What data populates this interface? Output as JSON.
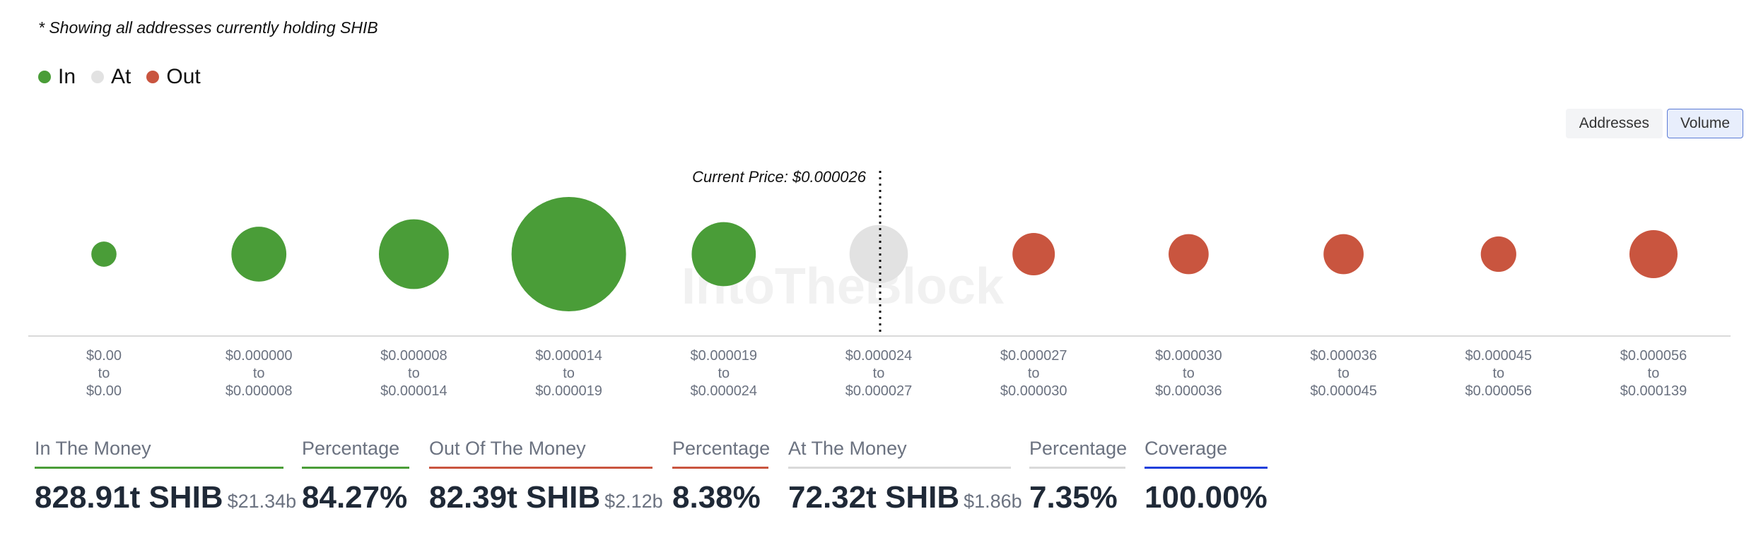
{
  "note": "* Showing all addresses currently holding SHIB",
  "legend": [
    {
      "label": "In",
      "color": "#4a9d38"
    },
    {
      "label": "At",
      "color": "#e2e2e2"
    },
    {
      "label": "Out",
      "color": "#c9553f"
    }
  ],
  "toggle": {
    "addresses": "Addresses",
    "volume": "Volume",
    "active": "volume"
  },
  "watermark": "IntoTheBlock",
  "chart_data": {
    "type": "bubble",
    "current_price_label": "Current Price: $0.000026",
    "current_price_after_index": 5,
    "buckets": [
      {
        "from": "$0.00",
        "to": "$0.00",
        "status": "in",
        "size": 0.22
      },
      {
        "from": "$0.000000",
        "to": "$0.000008",
        "status": "in",
        "size": 0.48
      },
      {
        "from": "$0.000008",
        "to": "$0.000014",
        "status": "in",
        "size": 0.61
      },
      {
        "from": "$0.000014",
        "to": "$0.000019",
        "status": "in",
        "size": 1.0
      },
      {
        "from": "$0.000019",
        "to": "$0.000024",
        "status": "in",
        "size": 0.56
      },
      {
        "from": "$0.000024",
        "to": "$0.000027",
        "status": "at",
        "size": 0.51
      },
      {
        "from": "$0.000027",
        "to": "$0.000030",
        "status": "out",
        "size": 0.37
      },
      {
        "from": "$0.000030",
        "to": "$0.000036",
        "status": "out",
        "size": 0.35
      },
      {
        "from": "$0.000036",
        "to": "$0.000045",
        "status": "out",
        "size": 0.35
      },
      {
        "from": "$0.000045",
        "to": "$0.000056",
        "status": "out",
        "size": 0.31
      },
      {
        "from": "$0.000056",
        "to": "$0.000139",
        "status": "out",
        "size": 0.42
      }
    ],
    "to_word": "to"
  },
  "stats": [
    {
      "label": "In The Money",
      "value": "828.91t SHIB",
      "sub": "$21.34b",
      "color": "#4a9d38"
    },
    {
      "label": "Percentage",
      "value": "84.27%",
      "sub": "",
      "color": "#4a9d38"
    },
    {
      "label": "Out Of The Money",
      "value": "82.39t SHIB",
      "sub": "$2.12b",
      "color": "#c9553f"
    },
    {
      "label": "Percentage",
      "value": "8.38%",
      "sub": "",
      "color": "#c9553f"
    },
    {
      "label": "At The Money",
      "value": "72.32t SHIB",
      "sub": "$1.86b",
      "color": "#d9d9d9"
    },
    {
      "label": "Percentage",
      "value": "7.35%",
      "sub": "",
      "color": "#d9d9d9"
    },
    {
      "label": "Coverage",
      "value": "100.00%",
      "sub": "",
      "color": "#1f3fdb"
    }
  ]
}
